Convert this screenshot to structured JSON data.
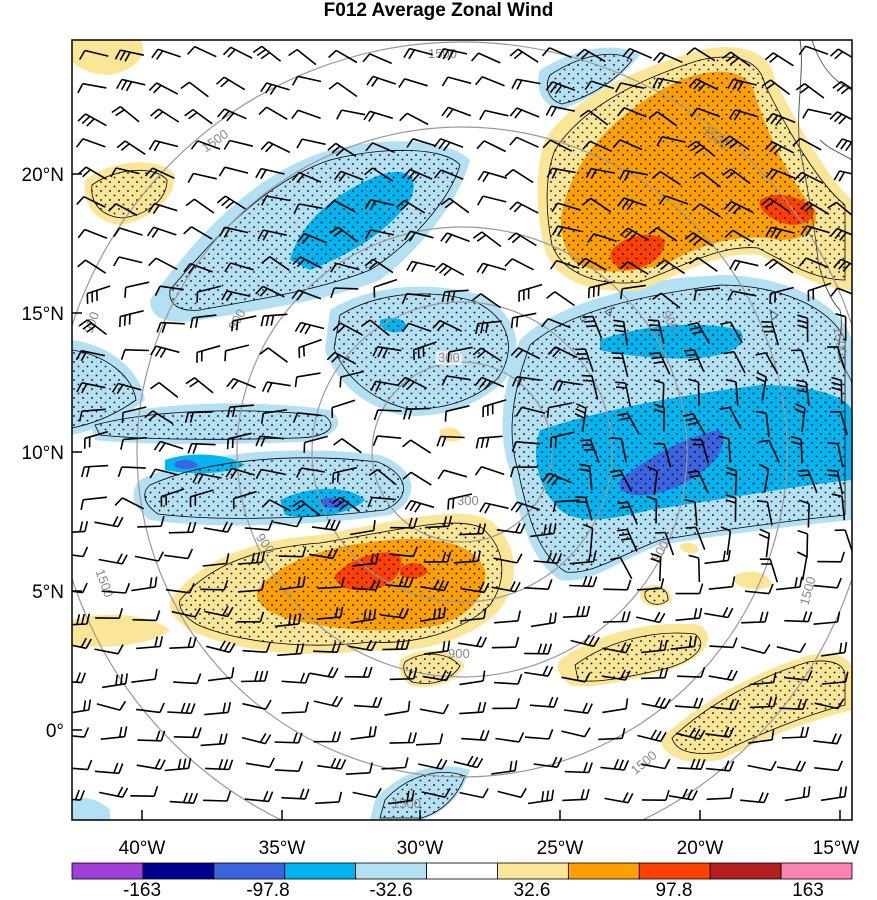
{
  "title": "F012 Average Zonal Wind",
  "lat_labels": [
    "20°N",
    "15°N",
    "10°N",
    "5°N",
    "0°"
  ],
  "lon_labels": [
    "40°W",
    "35°W",
    "30°W",
    "25°W",
    "20°W",
    "15°W"
  ],
  "ring_labels": [
    "300",
    "900",
    "1500"
  ],
  "colorbar": {
    "colors": [
      "#a040d8",
      "#000090",
      "#3c64e0",
      "#00b4f0",
      "#b4e0f4",
      "#ffffff",
      "#fae696",
      "#ffa000",
      "#ff4000",
      "#b41e1e",
      "#ff82b4"
    ],
    "labels": [
      "-163",
      "-97.8",
      "-32.6",
      "32.6",
      "97.8",
      "163"
    ]
  },
  "palette": {
    "light_blue": "#b4e0f4",
    "mid_blue": "#00b4f0",
    "dark_blue": "#3c64e0",
    "light_yellow": "#fae696",
    "orange": "#ffa000",
    "red": "#ff4000",
    "dark_red": "#b41e1e",
    "rings": "#999999"
  }
}
